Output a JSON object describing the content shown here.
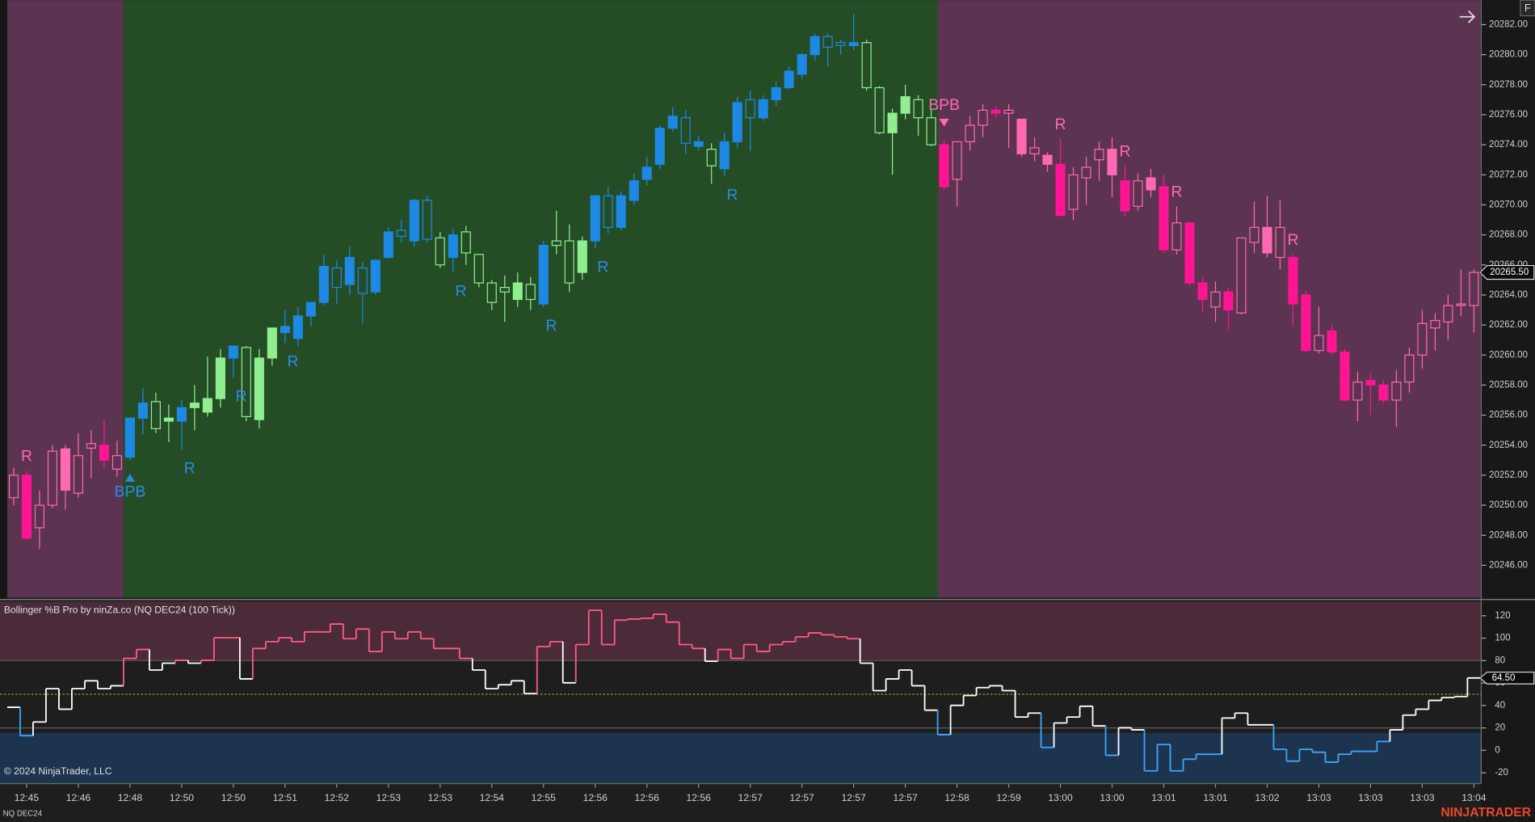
{
  "chart_data": [
    {
      "type": "candlestick",
      "categories": [
        null,
        "12:45",
        null,
        null,
        null,
        "12:46",
        null,
        null,
        null,
        "12:48",
        null,
        null,
        null,
        "12:50",
        null,
        null,
        null,
        "12:50",
        null,
        null,
        null,
        "12:51",
        null,
        null,
        null,
        "12:52",
        null,
        null,
        null,
        "12:53",
        null,
        null,
        null,
        "12:53",
        null,
        null,
        null,
        "12:54",
        null,
        null,
        null,
        "12:55",
        null,
        null,
        null,
        "12:56",
        null,
        null,
        null,
        "12:56",
        null,
        null,
        null,
        "12:56",
        null,
        null,
        null,
        "12:57",
        null,
        null,
        null,
        "12:57",
        null,
        null,
        null,
        "12:57",
        null,
        null,
        null,
        "12:57",
        null,
        null,
        null,
        "12:58",
        null,
        null,
        null,
        "12:59",
        null,
        null,
        null,
        "13:00",
        null,
        null,
        null,
        "13:00",
        null,
        null,
        null,
        "13:01",
        null,
        null,
        null,
        "13:01",
        null,
        null,
        null,
        "13:02",
        null,
        null,
        null,
        "13:03",
        null,
        null,
        null,
        "13:03",
        null,
        null,
        null,
        "13:03",
        null,
        null,
        null,
        "13:04"
      ],
      "open": [
        20250.5,
        20252,
        20248.5,
        20250,
        20253.75,
        20250.8,
        20253.8,
        20254,
        20252.4,
        20253.2,
        20255.8,
        20255.1,
        20255.6,
        20255.6,
        20256.5,
        20256.2,
        20257.1,
        20259.8,
        20255.9,
        20255.7,
        20259.8,
        20261.5,
        20261.1,
        20262.6,
        20263.5,
        20264.5,
        20264.7,
        20264.1,
        20264.2,
        20266.5,
        20267.9,
        20267.6,
        20267.7,
        20266,
        20266.5,
        20266.8,
        20264.8,
        20263.5,
        20264.2,
        20263.7,
        20263.7,
        20263.4,
        20267.3,
        20264.8,
        20265.5,
        20267.6,
        20268.5,
        20268.5,
        20270.3,
        20271.7,
        20272.7,
        20275.1,
        20274.1,
        20273.9,
        20272.6,
        20272.4,
        20274.2,
        20275.8,
        20275.8,
        20277,
        20277.8,
        20278.7,
        20280,
        20280.5,
        20280.6,
        20280.6,
        20277.8,
        20274.8,
        20274.8,
        20276.1,
        20275.8,
        20274,
        20274,
        20271.7,
        20274.2,
        20275.3,
        20276.3,
        20276.1,
        20275.7,
        20273.4,
        20273.3,
        20272.7,
        20269.7,
        20271.8,
        20273,
        20273.7,
        20271.6,
        20269.9,
        20271.8,
        20271.2,
        20267,
        20268.8,
        20264.8,
        20263.2,
        20264.2,
        20262.8,
        20267.5,
        20268.5,
        20266.5,
        20266.5,
        20264,
        20260.3,
        20261.6,
        20260.2,
        20257,
        20258.3,
        20258,
        20257,
        20258.2,
        20260,
        20261.8,
        20262.2,
        20263.3,
        20263.3
      ],
      "high": [
        20252.5,
        20252.3,
        20251,
        20254,
        20254,
        20254.8,
        20255,
        20255.7,
        20254.3,
        20255.8,
        20257.8,
        20257.5,
        20256.7,
        20257,
        20258,
        20259.9,
        20260.4,
        20260.6,
        20260.6,
        20260.4,
        20261.8,
        20263,
        20263.2,
        20263.5,
        20266.7,
        20266.3,
        20267.2,
        20266.2,
        20266.4,
        20268.5,
        20269,
        20270.4,
        20270.6,
        20268.2,
        20268.4,
        20268.6,
        20266.7,
        20265,
        20265.3,
        20265.5,
        20265.2,
        20267.6,
        20269.6,
        20268.7,
        20267.9,
        20270.6,
        20271.2,
        20270.9,
        20272.1,
        20273.2,
        20275.3,
        20276.5,
        20276.3,
        20274.6,
        20274.1,
        20274.8,
        20277.2,
        20277.6,
        20277.3,
        20278.2,
        20279.2,
        20280.1,
        20281.4,
        20281.4,
        20281,
        20282.7,
        20281,
        20277.9,
        20276.4,
        20278,
        20277.3,
        20276.3,
        20274.3,
        20274.2,
        20275.9,
        20276.7,
        20276.6,
        20276.7,
        20275.7,
        20274.5,
        20273.5,
        20274.4,
        20272.5,
        20273.2,
        20274.2,
        20274.5,
        20272.6,
        20272.1,
        20272.4,
        20272,
        20269.9,
        20268.8,
        20265.2,
        20264.9,
        20264.5,
        20267.8,
        20270.2,
        20270.6,
        20270.3,
        20266.7,
        20264.3,
        20263.2,
        20262,
        20260.4,
        20258.9,
        20258.8,
        20258.3,
        20259,
        20260.5,
        20263,
        20262.8,
        20264,
        20265.7,
        20265.7
      ],
      "low": [
        20250,
        20247.7,
        20247.1,
        20249.8,
        20249.7,
        20250.5,
        20251.8,
        20252.5,
        20251.9,
        20253,
        20254.7,
        20254.8,
        20254.2,
        20253.7,
        20255,
        20255.9,
        20256.5,
        20258.5,
        20255.6,
        20255.1,
        20259.3,
        20260.8,
        20260.6,
        20261.9,
        20263.3,
        20263.4,
        20264,
        20262.1,
        20264,
        20266.4,
        20267.5,
        20267.2,
        20267.5,
        20265.8,
        20265.5,
        20266,
        20264.5,
        20263,
        20262.2,
        20263.2,
        20263,
        20263.2,
        20266.7,
        20264.2,
        20265,
        20267.1,
        20268.1,
        20268.3,
        20270,
        20271.3,
        20272.4,
        20274.9,
        20273.4,
        20273.6,
        20271.4,
        20271.9,
        20273.8,
        20273.6,
        20275.6,
        20276.6,
        20277.7,
        20278.4,
        20279.6,
        20279.2,
        20280,
        20280.3,
        20277.6,
        20274.7,
        20272,
        20275.7,
        20274.6,
        20273.9,
        20271,
        20269.9,
        20273.6,
        20274.5,
        20275.8,
        20273.8,
        20273.2,
        20272.9,
        20272.2,
        20269.2,
        20269,
        20270,
        20271.6,
        20270.5,
        20269.2,
        20269.6,
        20270.5,
        20266.8,
        20266.7,
        20264.6,
        20262.8,
        20262.2,
        20261.6,
        20262.7,
        20266.8,
        20266.5,
        20265.7,
        20261.9,
        20260.2,
        20260.1,
        20260,
        20256.9,
        20255.6,
        20256,
        20256.8,
        20255.2,
        20257.5,
        20259.1,
        20260.3,
        20261,
        20262.6,
        20261.5
      ],
      "close": [
        20252,
        20247.8,
        20250,
        20253.6,
        20251,
        20253.3,
        20254.1,
        20253,
        20253.3,
        20255.8,
        20256.8,
        20256.9,
        20255.8,
        20256.5,
        20256.8,
        20257.1,
        20259.8,
        20260.6,
        20260.5,
        20259.8,
        20261.8,
        20261.9,
        20262.6,
        20263.5,
        20265.9,
        20265.8,
        20266.5,
        20265.8,
        20266.3,
        20268.2,
        20268.3,
        20270.3,
        20270.3,
        20267.8,
        20268,
        20268.2,
        20266.7,
        20264.8,
        20264.5,
        20264.8,
        20264.7,
        20267.3,
        20267.6,
        20267.6,
        20267.6,
        20270.6,
        20270.6,
        20270.6,
        20271.6,
        20272.5,
        20275.1,
        20275.9,
        20275.8,
        20274.2,
        20273.7,
        20274.2,
        20276.8,
        20277,
        20277,
        20277.8,
        20278.9,
        20280,
        20281.2,
        20281.2,
        20280.8,
        20280.8,
        20280.8,
        20277.8,
        20276.1,
        20277.2,
        20277,
        20275.8,
        20271.2,
        20274.2,
        20275.3,
        20276.3,
        20276.1,
        20276.3,
        20273.4,
        20273.8,
        20272.7,
        20269.3,
        20272,
        20272.5,
        20273.7,
        20272,
        20269.6,
        20271.6,
        20271,
        20267,
        20268.8,
        20264.8,
        20263.7,
        20264.2,
        20263,
        20267.8,
        20268.5,
        20266.8,
        20268.5,
        20263.4,
        20260.3,
        20261.3,
        20260.2,
        20257,
        20258.2,
        20258,
        20257,
        20258.2,
        20260,
        20262.1,
        20262.3,
        20263.3,
        20263.4,
        20265.5
      ],
      "colors": [
        "#ff69b4",
        "#ff1493",
        "#ff69b4",
        "#ff69b4",
        "#ff69b4",
        "#ff69b4",
        "#ff69b4",
        "#ff1493",
        "#ff69b4",
        "#1e88e5",
        "#1e88e5",
        "#90ee90",
        "#90ee90",
        "#1e88e5",
        "#90ee90",
        "#90ee90",
        "#90ee90",
        "#1e88e5",
        "#90ee90",
        "#90ee90",
        "#90ee90",
        "#1e88e5",
        "#1e88e5",
        "#1e88e5",
        "#1e88e5",
        "#1e88e5",
        "#1e88e5",
        "#1e88e5",
        "#1e88e5",
        "#1e88e5",
        "#1e88e5",
        "#1e88e5",
        "#1e88e5",
        "#90ee90",
        "#1e88e5",
        "#90ee90",
        "#90ee90",
        "#90ee90",
        "#90ee90",
        "#90ee90",
        "#90ee90",
        "#1e88e5",
        "#90ee90",
        "#90ee90",
        "#90ee90",
        "#1e88e5",
        "#1e88e5",
        "#1e88e5",
        "#1e88e5",
        "#1e88e5",
        "#1e88e5",
        "#1e88e5",
        "#1e88e5",
        "#1e88e5",
        "#90ee90",
        "#1e88e5",
        "#1e88e5",
        "#1e88e5",
        "#1e88e5",
        "#1e88e5",
        "#1e88e5",
        "#1e88e5",
        "#1e88e5",
        "#1e88e5",
        "#1e88e5",
        "#1e88e5",
        "#90ee90",
        "#90ee90",
        "#90ee90",
        "#90ee90",
        "#90ee90",
        "#90ee90",
        "#ff1493",
        "#ff69b4",
        "#ff69b4",
        "#ff69b4",
        "#ff1493",
        "#ff69b4",
        "#ff69b4",
        "#ff69b4",
        "#ff69b4",
        "#ff1493",
        "#ff69b4",
        "#ff69b4",
        "#ff69b4",
        "#ff69b4",
        "#ff1493",
        "#ff69b4",
        "#ff69b4",
        "#ff1493",
        "#ff69b4",
        "#ff1493",
        "#ff1493",
        "#ff69b4",
        "#ff1493",
        "#ff69b4",
        "#ff69b4",
        "#ff69b4",
        "#ff69b4",
        "#ff1493",
        "#ff1493",
        "#ff69b4",
        "#ff1493",
        "#ff1493",
        "#ff69b4",
        "#ff1493",
        "#ff1493",
        "#ff69b4",
        "#ff69b4",
        "#ff69b4",
        "#ff69b4",
        "#ff69b4",
        "#ff69b4",
        "#ff69b4"
      ],
      "filled": [
        false,
        true,
        false,
        false,
        true,
        false,
        false,
        true,
        false,
        true,
        true,
        false,
        true,
        true,
        true,
        true,
        true,
        true,
        false,
        true,
        true,
        true,
        true,
        true,
        true,
        false,
        true,
        false,
        true,
        true,
        false,
        true,
        false,
        false,
        true,
        false,
        false,
        false,
        false,
        true,
        false,
        true,
        false,
        false,
        true,
        true,
        false,
        true,
        true,
        true,
        true,
        true,
        false,
        true,
        false,
        true,
        true,
        false,
        true,
        true,
        true,
        true,
        true,
        false,
        false,
        true,
        false,
        false,
        true,
        true,
        false,
        false,
        true,
        false,
        false,
        false,
        true,
        false,
        true,
        false,
        true,
        true,
        false,
        false,
        false,
        true,
        true,
        false,
        true,
        true,
        false,
        true,
        true,
        false,
        true,
        false,
        false,
        true,
        false,
        true,
        true,
        false,
        true,
        true,
        false,
        true,
        true,
        false,
        false,
        false,
        false,
        false,
        false,
        false
      ],
      "ylim": [
        20243.85,
        20283.63
      ],
      "yticks": [
        {
          "value": 20246,
          "label": "20246.00"
        },
        {
          "value": 20248,
          "label": "20248.00"
        },
        {
          "value": 20250,
          "label": "20250.00"
        },
        {
          "value": 20252,
          "label": "20252.00"
        },
        {
          "value": 20254,
          "label": "20254.00"
        },
        {
          "value": 20256,
          "label": "20256.00"
        },
        {
          "value": 20258,
          "label": "20258.00"
        },
        {
          "value": 20260,
          "label": "20260.00"
        },
        {
          "value": 20262,
          "label": "20262.00"
        },
        {
          "value": 20264,
          "label": "20264.00"
        },
        {
          "value": 20266,
          "label": "20266.00"
        },
        {
          "value": 20268,
          "label": "20268.00"
        },
        {
          "value": 20270,
          "label": "20270.00"
        },
        {
          "value": 20272,
          "label": "20272.00"
        },
        {
          "value": 20274,
          "label": "20274.00"
        },
        {
          "value": 20276,
          "label": "20276.00"
        },
        {
          "value": 20278,
          "label": "20278.00"
        },
        {
          "value": 20280,
          "label": "20280.00"
        },
        {
          "value": 20282,
          "label": "20282.00"
        }
      ],
      "regimes": [
        {
          "from": 0,
          "to": 8,
          "color": "#5c3350"
        },
        {
          "from": 9,
          "to": 71,
          "color": "#244d25"
        },
        {
          "from": 72,
          "to": 113,
          "color": "#5c3350"
        }
      ],
      "markers": [
        {
          "text": "R",
          "bar": 1,
          "side": "above",
          "color": "#ff69b4"
        },
        {
          "text": "BPB",
          "bar": 9,
          "side": "below",
          "color": "#2a8ae8",
          "arrow": true
        },
        {
          "text": "R",
          "bar": 13,
          "side": "below",
          "color": "#2a8ae8"
        },
        {
          "text": "R",
          "bar": 17,
          "side": "below",
          "color": "#2a8ae8"
        },
        {
          "text": "R",
          "bar": 21,
          "side": "below",
          "color": "#2a8ae8"
        },
        {
          "text": "R",
          "bar": 34,
          "side": "below",
          "color": "#2a8ae8"
        },
        {
          "text": "R",
          "bar": 41,
          "side": "below",
          "color": "#2a8ae8"
        },
        {
          "text": "R",
          "bar": 45,
          "side": "below",
          "color": "#2a8ae8"
        },
        {
          "text": "R",
          "bar": 55,
          "side": "below",
          "color": "#2a8ae8"
        },
        {
          "text": "BPB",
          "bar": 72,
          "side": "above",
          "color": "#ff69b4",
          "arrow": true
        },
        {
          "text": "R",
          "bar": 81,
          "side": "above",
          "color": "#ff69b4"
        },
        {
          "text": "R",
          "bar": 86,
          "side": "above",
          "color": "#ff69b4"
        },
        {
          "text": "R",
          "bar": 90,
          "side": "above",
          "color": "#ff69b4"
        },
        {
          "text": "R",
          "bar": 99,
          "side": "above",
          "color": "#ff69b4"
        }
      ],
      "last_price": {
        "value": 20265.5,
        "label": "20265.50"
      }
    },
    {
      "type": "step",
      "title": "Bollinger %B Pro by ninZa.co (NQ DEC24 (100 Tick))",
      "values": [
        38.4,
        13.1,
        25.3,
        55,
        36.7,
        55,
        62,
        55,
        57.6,
        82,
        89.9,
        71.6,
        77.7,
        80.3,
        77.7,
        80.3,
        100.4,
        100.4,
        63.7,
        90.8,
        96.9,
        100.4,
        96.9,
        105.6,
        105.6,
        112.6,
        99.5,
        108.2,
        88.1,
        105.6,
        99.5,
        105.6,
        99.5,
        90.8,
        90.8,
        82,
        71.6,
        55,
        58.5,
        62,
        50.6,
        92.5,
        96.9,
        60.2,
        94.3,
        124.8,
        94.3,
        116.1,
        117,
        117.8,
        121.3,
        114.3,
        94.3,
        90.8,
        79.4,
        89.9,
        82,
        94.3,
        88.1,
        94.3,
        96.9,
        101.2,
        104.7,
        103,
        101.2,
        99.5,
        77.7,
        53.2,
        63.7,
        71.6,
        57.6,
        35.8,
        14,
        40.1,
        48.9,
        55.9,
        57.6,
        53.2,
        29.7,
        33.2,
        2.6,
        24.4,
        29.7,
        39.3,
        21.8,
        -4.4,
        20.1,
        18.3,
        -18.3,
        5.2,
        -18.3,
        -7.9,
        -3.5,
        -3.5,
        28.8,
        33.2,
        22.7,
        22.7,
        0.9,
        -9.6,
        0.9,
        -1.7,
        -10.5,
        -3.5,
        -0.9,
        -0.9,
        7.9,
        18.3,
        31.4,
        36.7,
        44.5,
        47.1,
        48,
        64.5
      ],
      "color": "#ffffff",
      "color_above": "#ff5a82",
      "color_below": "#42a5f5",
      "overbought": 80,
      "oversold": 15.5,
      "zone_colors": [
        "#4b2b39",
        "#1d3450"
      ],
      "levels": [
        80,
        50,
        20
      ],
      "level_colors": [
        "#5a5a5a",
        "#c89b3c",
        "#5a5a5a"
      ],
      "ylim": [
        -29.7,
        132.7
      ],
      "yticks": [
        -20,
        0,
        20,
        40,
        60,
        80,
        100,
        120
      ],
      "last_value": {
        "value": 64.5,
        "label": "64.50"
      }
    }
  ],
  "copyright": "© 2024 NinjaTrader, LLC",
  "instrument": "NQ DEC24",
  "brand": "NINJATRADER",
  "corner_button": "F"
}
